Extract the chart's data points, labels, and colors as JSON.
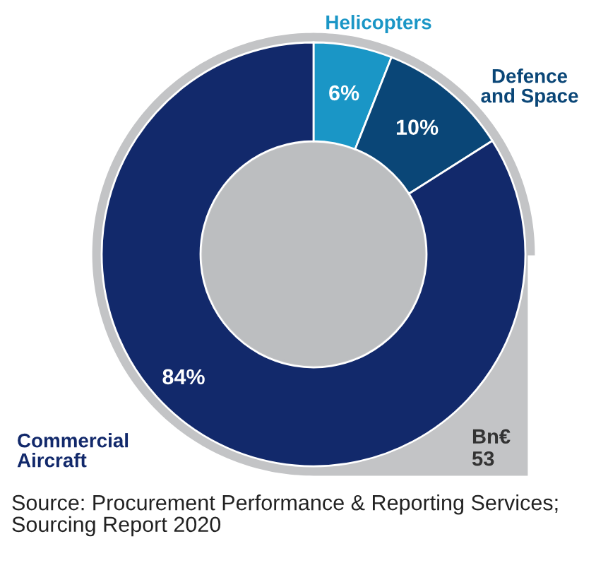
{
  "chart_data": {
    "type": "donut",
    "categories": [
      "Helicopters",
      "Defence and Space",
      "Commercial Aircraft"
    ],
    "values": [
      6,
      10,
      84
    ],
    "value_labels": [
      "6%",
      "10%",
      "84%"
    ],
    "colors": [
      "#1a96c6",
      "#0a4677",
      "#12296b"
    ],
    "annotations": [
      "Bn€\n53",
      "Source: Procurement Performance & Reporting Services; Sourcing Report 2020"
    ],
    "legend": false
  }
}
